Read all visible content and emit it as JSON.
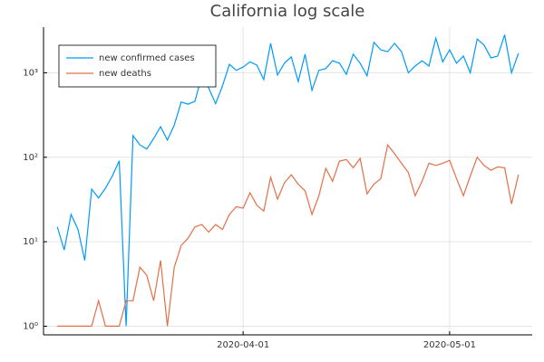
{
  "chart_data": {
    "type": "line",
    "title": "California log scale",
    "x": [
      "2020-03-05",
      "2020-03-06",
      "2020-03-07",
      "2020-03-08",
      "2020-03-09",
      "2020-03-10",
      "2020-03-11",
      "2020-03-12",
      "2020-03-13",
      "2020-03-14",
      "2020-03-15",
      "2020-03-16",
      "2020-03-17",
      "2020-03-18",
      "2020-03-19",
      "2020-03-20",
      "2020-03-21",
      "2020-03-22",
      "2020-03-23",
      "2020-03-24",
      "2020-03-25",
      "2020-03-26",
      "2020-03-27",
      "2020-03-28",
      "2020-03-29",
      "2020-03-30",
      "2020-03-31",
      "2020-04-01",
      "2020-04-02",
      "2020-04-03",
      "2020-04-04",
      "2020-04-05",
      "2020-04-06",
      "2020-04-07",
      "2020-04-08",
      "2020-04-09",
      "2020-04-10",
      "2020-04-11",
      "2020-04-12",
      "2020-04-13",
      "2020-04-14",
      "2020-04-15",
      "2020-04-16",
      "2020-04-17",
      "2020-04-18",
      "2020-04-19",
      "2020-04-20",
      "2020-04-21",
      "2020-04-22",
      "2020-04-23",
      "2020-04-24",
      "2020-04-25",
      "2020-04-26",
      "2020-04-27",
      "2020-04-28",
      "2020-04-29",
      "2020-04-30",
      "2020-05-01",
      "2020-05-02",
      "2020-05-03",
      "2020-05-04",
      "2020-05-05",
      "2020-05-06",
      "2020-05-07",
      "2020-05-08",
      "2020-05-09",
      "2020-05-10",
      "2020-05-11"
    ],
    "series": [
      {
        "name": "new confirmed cases",
        "color": "#009afa",
        "values": [
          15,
          8,
          21,
          14,
          6,
          42,
          33,
          43,
          60,
          91,
          1,
          180,
          140,
          125,
          167,
          230,
          160,
          240,
          450,
          425,
          460,
          920,
          660,
          430,
          700,
          1260,
          1070,
          1170,
          1350,
          1230,
          830,
          2230,
          940,
          1300,
          1540,
          790,
          1660,
          620,
          1070,
          1120,
          1390,
          1300,
          960,
          1660,
          1300,
          920,
          2290,
          1870,
          1780,
          2230,
          1780,
          1000,
          1200,
          1390,
          1200,
          2570,
          1350,
          1870,
          1300,
          1580,
          1000,
          2510,
          2130,
          1500,
          1580,
          2820,
          1000,
          1700
        ]
      },
      {
        "name": "new deaths",
        "color": "#e36f47",
        "values": [
          1,
          1,
          1,
          1,
          1,
          1,
          2,
          1,
          1,
          1,
          2,
          2,
          5,
          4,
          2,
          6,
          1,
          5,
          9,
          11,
          15,
          16,
          13,
          16,
          14,
          21,
          26,
          25,
          38,
          27,
          23,
          58,
          32,
          50,
          62,
          48,
          40,
          21,
          35,
          74,
          52,
          90,
          94,
          75,
          97,
          37,
          48,
          56,
          140,
          110,
          85,
          66,
          35,
          52,
          85,
          80,
          85,
          92,
          56,
          35,
          60,
          100,
          80,
          70,
          77,
          75,
          28,
          62
        ]
      }
    ],
    "xlim": [
      "2020-03-03",
      "2020-05-13"
    ],
    "xticks": [
      "2020-04-01",
      "2020-05-01"
    ],
    "ylim": [
      0.79,
      3470
    ],
    "log_y": true,
    "yticks": [
      {
        "value": 1,
        "label": "10⁰"
      },
      {
        "value": 10,
        "label": "10¹"
      },
      {
        "value": 100,
        "label": "10²"
      },
      {
        "value": 1000,
        "label": "10³"
      }
    ],
    "grid": true,
    "legend": "top-left"
  }
}
